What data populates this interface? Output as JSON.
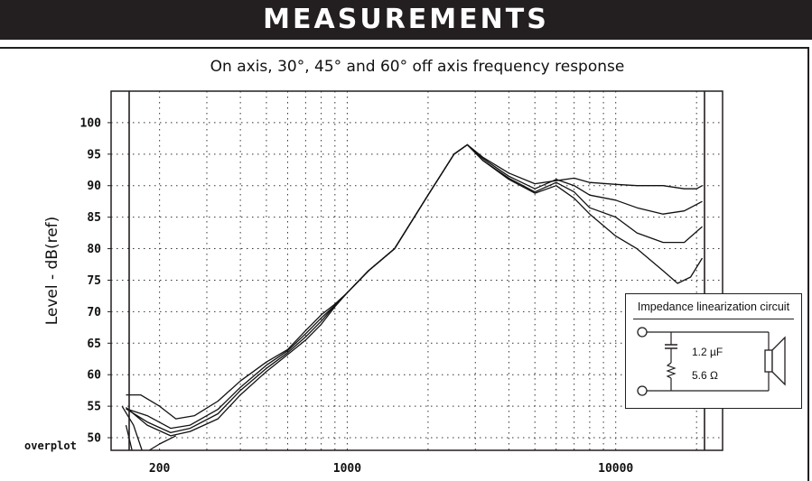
{
  "banner": {
    "title": "MEASUREMENTS"
  },
  "chart_data": {
    "type": "line",
    "title": "On axis, 30°, 45° and 60° off axis frequency response",
    "ylabel": "Level - dB(ref)",
    "xlabel": "",
    "xscale": "log",
    "xlim": [
      132,
      25000
    ],
    "ylim": [
      48,
      105
    ],
    "x_tick_labels": [
      {
        "value": 200,
        "label": "200"
      },
      {
        "value": 1000,
        "label": "1000"
      },
      {
        "value": 10000,
        "label": "10000"
      }
    ],
    "y_ticks": [
      50,
      55,
      60,
      65,
      70,
      75,
      80,
      85,
      90,
      95,
      100
    ],
    "bottom_label": "overplot",
    "grid": true,
    "series": [
      {
        "values": [
          [
            150,
            56.8
          ],
          [
            170,
            56.8
          ],
          [
            200,
            55
          ],
          [
            230,
            53
          ],
          [
            270,
            53.5
          ],
          [
            330,
            55.8
          ],
          [
            400,
            59
          ],
          [
            500,
            62
          ],
          [
            600,
            64
          ],
          [
            700,
            67
          ],
          [
            800,
            69.5
          ],
          [
            900,
            71.2
          ],
          [
            1000,
            73
          ],
          [
            1200,
            76.5
          ],
          [
            1500,
            80
          ],
          [
            2000,
            88.5
          ],
          [
            2500,
            95
          ],
          [
            2800,
            96.5
          ],
          [
            3200,
            94.5
          ],
          [
            4000,
            92
          ],
          [
            5000,
            90.3
          ],
          [
            6000,
            90.8
          ],
          [
            7000,
            91.2
          ],
          [
            8000,
            90.5
          ],
          [
            10000,
            90.2
          ],
          [
            12000,
            90
          ],
          [
            15000,
            90
          ],
          [
            18000,
            89.5
          ],
          [
            20000,
            89.5
          ],
          [
            21000,
            90
          ]
        ]
      },
      {
        "values": [
          [
            150,
            54.6
          ],
          [
            180,
            53.5
          ],
          [
            220,
            51.5
          ],
          [
            260,
            52
          ],
          [
            330,
            54.5
          ],
          [
            400,
            58
          ],
          [
            500,
            61.5
          ],
          [
            600,
            63.8
          ],
          [
            700,
            66.5
          ],
          [
            800,
            69
          ],
          [
            900,
            71
          ],
          [
            1000,
            73
          ],
          [
            1200,
            76.5
          ],
          [
            1500,
            80
          ],
          [
            2000,
            88.5
          ],
          [
            2500,
            95
          ],
          [
            2800,
            96.5
          ],
          [
            3200,
            94.3
          ],
          [
            4000,
            91.5
          ],
          [
            5000,
            89.5
          ],
          [
            6000,
            91
          ],
          [
            7000,
            90
          ],
          [
            8000,
            88.5
          ],
          [
            10000,
            87.7
          ],
          [
            12000,
            86.5
          ],
          [
            15000,
            85.5
          ],
          [
            18000,
            86
          ],
          [
            21000,
            87.5
          ]
        ]
      },
      {
        "values": [
          [
            150,
            54.6
          ],
          [
            180,
            52.5
          ],
          [
            220,
            50.8
          ],
          [
            260,
            51.5
          ],
          [
            330,
            53.8
          ],
          [
            400,
            57.5
          ],
          [
            500,
            61
          ],
          [
            600,
            63.5
          ],
          [
            700,
            66
          ],
          [
            800,
            68.5
          ],
          [
            900,
            71
          ],
          [
            1000,
            73
          ],
          [
            1200,
            76.5
          ],
          [
            1500,
            80
          ],
          [
            2000,
            88.5
          ],
          [
            2500,
            95
          ],
          [
            2800,
            96.5
          ],
          [
            3200,
            94
          ],
          [
            4000,
            91.2
          ],
          [
            5000,
            89
          ],
          [
            6000,
            90.5
          ],
          [
            7000,
            89
          ],
          [
            8000,
            86.5
          ],
          [
            10000,
            85
          ],
          [
            12000,
            82.5
          ],
          [
            15000,
            81
          ],
          [
            18000,
            81
          ],
          [
            21000,
            83.5
          ]
        ]
      },
      {
        "values": [
          [
            150,
            54.8
          ],
          [
            180,
            52
          ],
          [
            220,
            50.3
          ],
          [
            260,
            51
          ],
          [
            330,
            53
          ],
          [
            400,
            56.8
          ],
          [
            500,
            60.5
          ],
          [
            600,
            63.2
          ],
          [
            700,
            65.5
          ],
          [
            800,
            68
          ],
          [
            900,
            70.8
          ],
          [
            1000,
            73
          ],
          [
            1200,
            76.5
          ],
          [
            1500,
            80
          ],
          [
            2000,
            88.5
          ],
          [
            2500,
            95
          ],
          [
            2800,
            96.5
          ],
          [
            3200,
            94
          ],
          [
            4000,
            91
          ],
          [
            5000,
            88.8
          ],
          [
            6000,
            90
          ],
          [
            7000,
            88
          ],
          [
            8000,
            85.5
          ],
          [
            10000,
            82
          ],
          [
            12000,
            80
          ],
          [
            15000,
            76.5
          ],
          [
            17000,
            74.5
          ],
          [
            19000,
            75.5
          ],
          [
            21000,
            78.5
          ]
        ]
      },
      {
        "values": [
          [
            145,
            55
          ],
          [
            160,
            52
          ],
          [
            172,
            48
          ]
        ]
      },
      {
        "values": [
          [
            150,
            52
          ],
          [
            158,
            48
          ]
        ]
      },
      {
        "values": [
          [
            183,
            48
          ],
          [
            200,
            49
          ],
          [
            230,
            50.3
          ]
        ]
      }
    ]
  },
  "inset": {
    "title": "Impedance linearization circuit",
    "capacitor": "1.2 µF",
    "resistor": "5.6 Ω"
  }
}
